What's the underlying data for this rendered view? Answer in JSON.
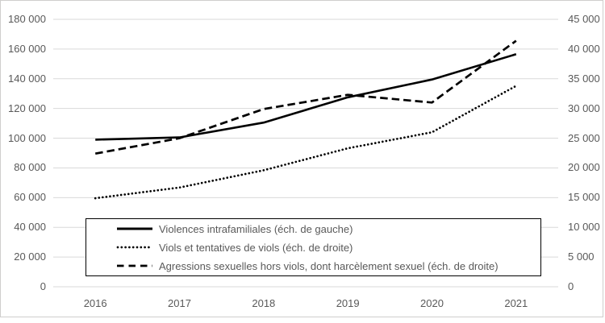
{
  "chart_data": {
    "type": "line",
    "title": "",
    "categories": [
      "2016",
      "2017",
      "2018",
      "2019",
      "2020",
      "2021"
    ],
    "series": [
      {
        "name": "Violences intrafamiliales (éch. de gauche)",
        "axis": "left",
        "style": "solid",
        "values": [
          99000,
          100500,
          110500,
          127500,
          139500,
          156500
        ]
      },
      {
        "name": "Viols et tentatives de viols (éch. de droite)",
        "axis": "right",
        "style": "dotted",
        "values": [
          14900,
          16700,
          19600,
          23300,
          26000,
          33800
        ]
      },
      {
        "name": "Agressions sexuelles hors viols, dont harcèlement sexuel (éch. de droite)",
        "axis": "right",
        "style": "dashed",
        "values": [
          22400,
          25000,
          29900,
          32300,
          31000,
          41400
        ]
      }
    ],
    "left_axis": {
      "min": 0,
      "max": 180000,
      "step": 20000,
      "tick_labels": [
        "180 000",
        "160 000",
        "140 000",
        "120 000",
        "100 000",
        "80 000",
        "60 000",
        "40 000",
        "20 000",
        "0"
      ]
    },
    "right_axis": {
      "min": 0,
      "max": 45000,
      "step": 5000,
      "tick_labels": [
        "45 000",
        "40 000",
        "35 000",
        "30 000",
        "25 000",
        "20 000",
        "15 000",
        "10 000",
        "5 000",
        "0"
      ]
    },
    "grid": true,
    "legend_position": "bottom-inside",
    "colors": {
      "series": "#000000",
      "grid": "#d9d9d9",
      "text": "#595959",
      "frame_border": "#cfcecd",
      "legend_border": "#000000",
      "background": "#ffffff"
    }
  }
}
